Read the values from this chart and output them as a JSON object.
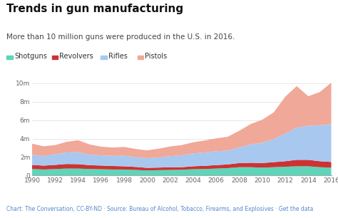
{
  "title": "Trends in gun manufacturing",
  "subtitle": "More than 10 million guns were produced in the U.S. in 2016.",
  "footer": "Chart: The Conversation, CC-BY-ND · Source: Bureau of Alcohol, Tobacco, Firearms, and Explosives · Get the data",
  "years": [
    1990,
    1991,
    1992,
    1993,
    1994,
    1995,
    1996,
    1997,
    1998,
    1999,
    2000,
    2001,
    2002,
    2003,
    2004,
    2005,
    2006,
    2007,
    2008,
    2009,
    2010,
    2011,
    2012,
    2013,
    2014,
    2015,
    2016
  ],
  "shotguns": [
    700000,
    650000,
    700000,
    750000,
    750000,
    700000,
    680000,
    650000,
    650000,
    600000,
    550000,
    580000,
    600000,
    620000,
    680000,
    700000,
    750000,
    800000,
    900000,
    900000,
    850000,
    900000,
    950000,
    1000000,
    1000000,
    900000,
    850000
  ],
  "revolvers": [
    450000,
    420000,
    450000,
    500000,
    480000,
    420000,
    400000,
    380000,
    350000,
    330000,
    280000,
    280000,
    300000,
    280000,
    320000,
    350000,
    380000,
    400000,
    450000,
    480000,
    500000,
    550000,
    600000,
    700000,
    700000,
    650000,
    620000
  ],
  "rifles": [
    1100000,
    1050000,
    1150000,
    1250000,
    1300000,
    1150000,
    1100000,
    1100000,
    1150000,
    1050000,
    1050000,
    1100000,
    1200000,
    1300000,
    1400000,
    1450000,
    1500000,
    1500000,
    1700000,
    2000000,
    2200000,
    2500000,
    3000000,
    3500000,
    3700000,
    3900000,
    4100000
  ],
  "pistols": [
    1200000,
    1050000,
    1000000,
    1150000,
    1300000,
    1100000,
    950000,
    900000,
    950000,
    900000,
    850000,
    950000,
    1050000,
    1100000,
    1200000,
    1300000,
    1400000,
    1500000,
    1800000,
    2200000,
    2500000,
    2900000,
    4000000,
    4500000,
    3200000,
    3600000,
    4500000
  ],
  "colors": {
    "shotguns": "#5dd5b8",
    "revolvers": "#cc3333",
    "rifles": "#a8c8f0",
    "pistols": "#f0a898"
  },
  "ylim": [
    0,
    11000000
  ],
  "yticks": [
    0,
    2000000,
    4000000,
    6000000,
    8000000,
    10000000
  ],
  "ytick_labels": [
    "0",
    "2m",
    "4m",
    "6m",
    "8m",
    "10m"
  ],
  "bg_color": "#ffffff",
  "title_fontsize": 11,
  "subtitle_fontsize": 7.5,
  "legend_fontsize": 7,
  "footer_fontsize": 5.5,
  "axis_tick_fontsize": 6.5
}
